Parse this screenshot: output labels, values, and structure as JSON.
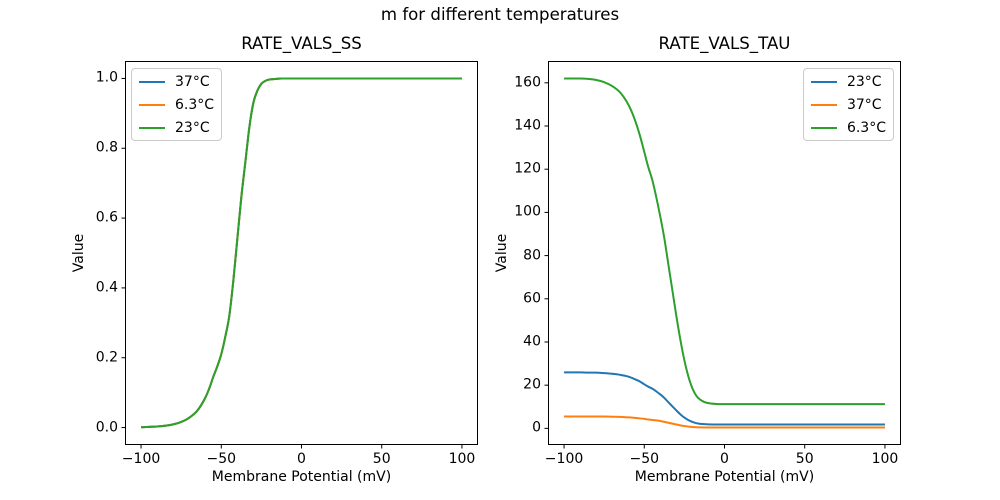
{
  "figure": {
    "suptitle": "m for different temperatures",
    "background": "#ffffff"
  },
  "colors": {
    "blue": "#1f77b4",
    "orange": "#ff7f0e",
    "green": "#2ca02c",
    "axis": "#000000",
    "legend_border": "#cccccc",
    "text": "#000000"
  },
  "chart_data": [
    {
      "type": "line",
      "title": "RATE_VALS_SS",
      "xlabel": "Membrane Potential (mV)",
      "ylabel": "Value",
      "xlim": [
        -110,
        110
      ],
      "ylim": [
        -0.05,
        1.05
      ],
      "xticks": [
        -100,
        -50,
        0,
        50,
        100
      ],
      "xtick_labels": [
        "−100",
        "−50",
        "0",
        "50",
        "100"
      ],
      "yticks": [
        0.0,
        0.2,
        0.4,
        0.6,
        0.8,
        1.0
      ],
      "ytick_labels": [
        "0.0",
        "0.2",
        "0.4",
        "0.6",
        "0.8",
        "1.0"
      ],
      "grid": false,
      "legend_position": "upper left",
      "x": [
        -100,
        -95,
        -90,
        -85,
        -80,
        -75,
        -70,
        -65,
        -60,
        -57.5,
        -55,
        -52.5,
        -50,
        -47.5,
        -45,
        -42.5,
        -40,
        -37.5,
        -35,
        -32.5,
        -30,
        -27.5,
        -25,
        -22.5,
        -20,
        -17.5,
        -15,
        -12.5,
        -10,
        -5,
        0,
        25,
        50,
        75,
        100
      ],
      "series": [
        {
          "name": "37°C",
          "color": "#1f77b4",
          "values": [
            0.001,
            0.002,
            0.003,
            0.005,
            0.009,
            0.016,
            0.028,
            0.048,
            0.085,
            0.112,
            0.145,
            0.175,
            0.21,
            0.26,
            0.32,
            0.42,
            0.54,
            0.66,
            0.76,
            0.86,
            0.93,
            0.965,
            0.985,
            0.993,
            0.997,
            0.998,
            0.999,
            1.0,
            1.0,
            1.0,
            1.0,
            1.0,
            1.0,
            1.0,
            1.0
          ]
        },
        {
          "name": "6.3°C",
          "color": "#ff7f0e",
          "values": [
            0.001,
            0.002,
            0.003,
            0.005,
            0.009,
            0.016,
            0.028,
            0.048,
            0.085,
            0.112,
            0.145,
            0.175,
            0.21,
            0.26,
            0.32,
            0.42,
            0.54,
            0.66,
            0.76,
            0.86,
            0.93,
            0.965,
            0.985,
            0.993,
            0.997,
            0.998,
            0.999,
            1.0,
            1.0,
            1.0,
            1.0,
            1.0,
            1.0,
            1.0,
            1.0
          ]
        },
        {
          "name": "23°C",
          "color": "#2ca02c",
          "values": [
            0.001,
            0.002,
            0.003,
            0.005,
            0.009,
            0.016,
            0.028,
            0.048,
            0.085,
            0.112,
            0.145,
            0.175,
            0.21,
            0.26,
            0.32,
            0.42,
            0.54,
            0.66,
            0.76,
            0.86,
            0.93,
            0.965,
            0.985,
            0.993,
            0.997,
            0.998,
            0.999,
            1.0,
            1.0,
            1.0,
            1.0,
            1.0,
            1.0,
            1.0,
            1.0
          ]
        }
      ]
    },
    {
      "type": "line",
      "title": "RATE_VALS_TAU",
      "xlabel": "Membrane Potential (mV)",
      "ylabel": "Value",
      "xlim": [
        -110,
        110
      ],
      "ylim": [
        -7.7,
        170.1
      ],
      "xticks": [
        -100,
        -50,
        0,
        50,
        100
      ],
      "xtick_labels": [
        "−100",
        "−50",
        "0",
        "50",
        "100"
      ],
      "yticks": [
        0,
        20,
        40,
        60,
        80,
        100,
        120,
        140,
        160
      ],
      "ytick_labels": [
        "0",
        "20",
        "40",
        "60",
        "80",
        "100",
        "120",
        "140",
        "160"
      ],
      "grid": false,
      "legend_position": "upper right",
      "x": [
        -100,
        -95,
        -90,
        -85,
        -80,
        -75,
        -70,
        -65,
        -60,
        -57.5,
        -55,
        -52.5,
        -50,
        -47.5,
        -45,
        -42.5,
        -40,
        -37.5,
        -35,
        -32.5,
        -30,
        -27.5,
        -25,
        -22.5,
        -20,
        -17.5,
        -15,
        -12.5,
        -10,
        -5,
        0,
        25,
        50,
        75,
        100
      ],
      "series": [
        {
          "name": "23°C",
          "color": "#1f77b4",
          "values": [
            25.9,
            25.9,
            25.9,
            25.8,
            25.8,
            25.6,
            25.3,
            24.8,
            24.0,
            23.3,
            22.5,
            21.6,
            20.4,
            19.3,
            18.4,
            17.1,
            15.7,
            14.1,
            12.1,
            10.2,
            8.3,
            6.5,
            5.0,
            3.8,
            3.0,
            2.4,
            2.1,
            1.95,
            1.87,
            1.8,
            1.79,
            1.79,
            1.79,
            1.79,
            1.79
          ]
        },
        {
          "name": "37°C",
          "color": "#ff7f0e",
          "values": [
            5.5,
            5.5,
            5.5,
            5.5,
            5.5,
            5.5,
            5.4,
            5.3,
            5.1,
            5.0,
            4.8,
            4.6,
            4.4,
            4.1,
            3.9,
            3.7,
            3.4,
            3.0,
            2.6,
            2.2,
            1.8,
            1.4,
            1.1,
            0.8,
            0.63,
            0.51,
            0.45,
            0.42,
            0.4,
            0.39,
            0.38,
            0.38,
            0.38,
            0.38,
            0.38
          ]
        },
        {
          "name": "6.3°C",
          "color": "#2ca02c",
          "values": [
            162,
            162,
            162,
            161.8,
            161.3,
            160.3,
            158.5,
            155.5,
            150,
            146,
            141,
            135,
            128,
            121,
            115,
            107,
            98,
            88,
            76,
            64,
            52,
            41,
            31.5,
            24,
            18.5,
            15,
            13.2,
            12.2,
            11.7,
            11.3,
            11.2,
            11.2,
            11.2,
            11.2,
            11.2
          ]
        }
      ]
    }
  ]
}
